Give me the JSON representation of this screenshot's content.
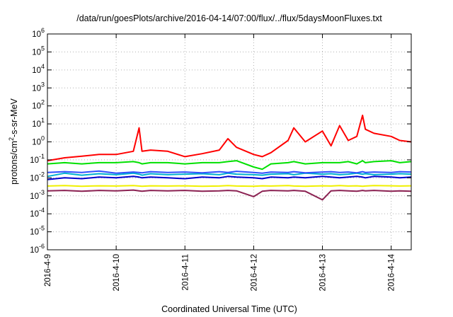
{
  "chart_data": {
    "type": "line",
    "title": "/data/run/goesPlots/archive/2016-04-14/07:00/flux/../flux/5daysMoonFluxes.txt",
    "xlabel": "Coordinated Universal Time (UTC)",
    "ylabel": {
      "pre": "protons/cm",
      "sup": "2",
      "post": "-s-sr-MeV"
    },
    "y_scale": "log",
    "ylim": [
      1e-06,
      1000000.0
    ],
    "y_ticks": [
      {
        "value": 1e-06,
        "base": "10",
        "exp": "-6"
      },
      {
        "value": 1e-05,
        "base": "10",
        "exp": "-5"
      },
      {
        "value": 0.0001,
        "base": "10",
        "exp": "-4"
      },
      {
        "value": 0.001,
        "base": "10",
        "exp": "-3"
      },
      {
        "value": 0.01,
        "base": "10",
        "exp": "-2"
      },
      {
        "value": 0.1,
        "base": "10",
        "exp": "-1"
      },
      {
        "value": 1,
        "base": "10",
        "exp": "0"
      },
      {
        "value": 10,
        "base": "10",
        "exp": "1"
      },
      {
        "value": 100,
        "base": "10",
        "exp": "2"
      },
      {
        "value": 1000,
        "base": "10",
        "exp": "3"
      },
      {
        "value": 10000,
        "base": "10",
        "exp": "4"
      },
      {
        "value": 100000,
        "base": "10",
        "exp": "5"
      },
      {
        "value": 1000000,
        "base": "10",
        "exp": "6"
      }
    ],
    "xlim": [
      "2016-04-09T00:00",
      "2016-04-14T07:00"
    ],
    "x_ticks": [
      {
        "value": "2016-04-09T00:00",
        "label": "2016-4-9"
      },
      {
        "value": "2016-04-10T00:00",
        "label": "2016-4-10"
      },
      {
        "value": "2016-04-11T00:00",
        "label": "2016-4-11"
      },
      {
        "value": "2016-04-12T00:00",
        "label": "2016-4-12"
      },
      {
        "value": "2016-04-13T00:00",
        "label": "2016-4-13"
      },
      {
        "value": "2016-04-14T00:00",
        "label": "2016-4-14"
      }
    ],
    "grid": true,
    "x": [
      "2016-04-09T00:00",
      "2016-04-09T06:00",
      "2016-04-09T12:00",
      "2016-04-09T18:00",
      "2016-04-10T00:00",
      "2016-04-10T06:00",
      "2016-04-10T08:00",
      "2016-04-10T09:00",
      "2016-04-10T12:00",
      "2016-04-10T18:00",
      "2016-04-11T00:00",
      "2016-04-11T06:00",
      "2016-04-11T12:00",
      "2016-04-11T15:00",
      "2016-04-11T18:00",
      "2016-04-12T00:00",
      "2016-04-12T03:00",
      "2016-04-12T06:00",
      "2016-04-12T12:00",
      "2016-04-12T14:00",
      "2016-04-12T18:00",
      "2016-04-13T00:00",
      "2016-04-13T03:00",
      "2016-04-13T06:00",
      "2016-04-13T09:00",
      "2016-04-13T12:00",
      "2016-04-13T14:00",
      "2016-04-13T15:00",
      "2016-04-13T18:00",
      "2016-04-14T00:00",
      "2016-04-14T03:00",
      "2016-04-14T07:00"
    ],
    "series": [
      {
        "color": "#ff0000",
        "values": [
          0.09,
          0.13,
          0.16,
          0.2,
          0.2,
          0.3,
          6,
          0.3,
          0.35,
          0.3,
          0.15,
          0.22,
          0.35,
          1.5,
          0.5,
          0.2,
          0.15,
          0.25,
          1.2,
          6,
          1,
          4,
          0.6,
          8,
          1.2,
          2,
          30,
          5,
          3,
          2,
          1.2,
          1
        ]
      },
      {
        "color": "#00e000",
        "values": [
          0.06,
          0.07,
          0.06,
          0.07,
          0.07,
          0.08,
          0.07,
          0.06,
          0.07,
          0.07,
          0.06,
          0.07,
          0.07,
          0.08,
          0.09,
          0.04,
          0.03,
          0.06,
          0.07,
          0.08,
          0.06,
          0.07,
          0.07,
          0.07,
          0.08,
          0.06,
          0.09,
          0.07,
          0.08,
          0.09,
          0.07,
          0.08
        ]
      },
      {
        "color": "#00b0d0",
        "values": [
          0.012,
          0.018,
          0.014,
          0.017,
          0.015,
          0.018,
          0.016,
          0.014,
          0.017,
          0.015,
          0.016,
          0.017,
          0.015,
          0.018,
          0.016,
          0.015,
          0.014,
          0.016,
          0.017,
          0.015,
          0.018,
          0.016,
          0.017,
          0.015,
          0.016,
          0.018,
          0.016,
          0.017,
          0.015,
          0.016,
          0.017,
          0.016
        ]
      },
      {
        "color": "#3050ff",
        "values": [
          0.02,
          0.022,
          0.02,
          0.024,
          0.018,
          0.021,
          0.02,
          0.019,
          0.022,
          0.02,
          0.021,
          0.019,
          0.022,
          0.02,
          0.023,
          0.02,
          0.018,
          0.021,
          0.02,
          0.022,
          0.019,
          0.021,
          0.022,
          0.02,
          0.021,
          0.019,
          0.022,
          0.02,
          0.021,
          0.02,
          0.022,
          0.021
        ]
      },
      {
        "color": "#0000cc",
        "values": [
          0.008,
          0.01,
          0.009,
          0.011,
          0.01,
          0.012,
          0.011,
          0.01,
          0.011,
          0.01,
          0.009,
          0.011,
          0.01,
          0.012,
          0.011,
          0.01,
          0.009,
          0.011,
          0.01,
          0.011,
          0.01,
          0.012,
          0.011,
          0.01,
          0.011,
          0.012,
          0.011,
          0.01,
          0.012,
          0.011,
          0.01,
          0.011
        ]
      },
      {
        "color": "#f0f000",
        "values": [
          0.0035,
          0.0037,
          0.0034,
          0.0036,
          0.0035,
          0.0037,
          0.0035,
          0.0034,
          0.0036,
          0.0035,
          0.0036,
          0.0034,
          0.0035,
          0.0037,
          0.0035,
          0.0034,
          0.0036,
          0.0035,
          0.0037,
          0.0035,
          0.0034,
          0.0036,
          0.0035,
          0.0037,
          0.0035,
          0.0036,
          0.0034,
          0.0035,
          0.0037,
          0.0036,
          0.0035,
          0.0036
        ]
      },
      {
        "color": "#8b2252",
        "values": [
          0.0019,
          0.002,
          0.0018,
          0.002,
          0.0019,
          0.0021,
          0.0019,
          0.0018,
          0.002,
          0.0019,
          0.002,
          0.0018,
          0.0019,
          0.002,
          0.0019,
          0.0009,
          0.0018,
          0.002,
          0.0019,
          0.002,
          0.0018,
          0.0006,
          0.0019,
          0.002,
          0.0019,
          0.0018,
          0.002,
          0.0019,
          0.002,
          0.0018,
          0.0019,
          0.0018
        ]
      }
    ]
  }
}
